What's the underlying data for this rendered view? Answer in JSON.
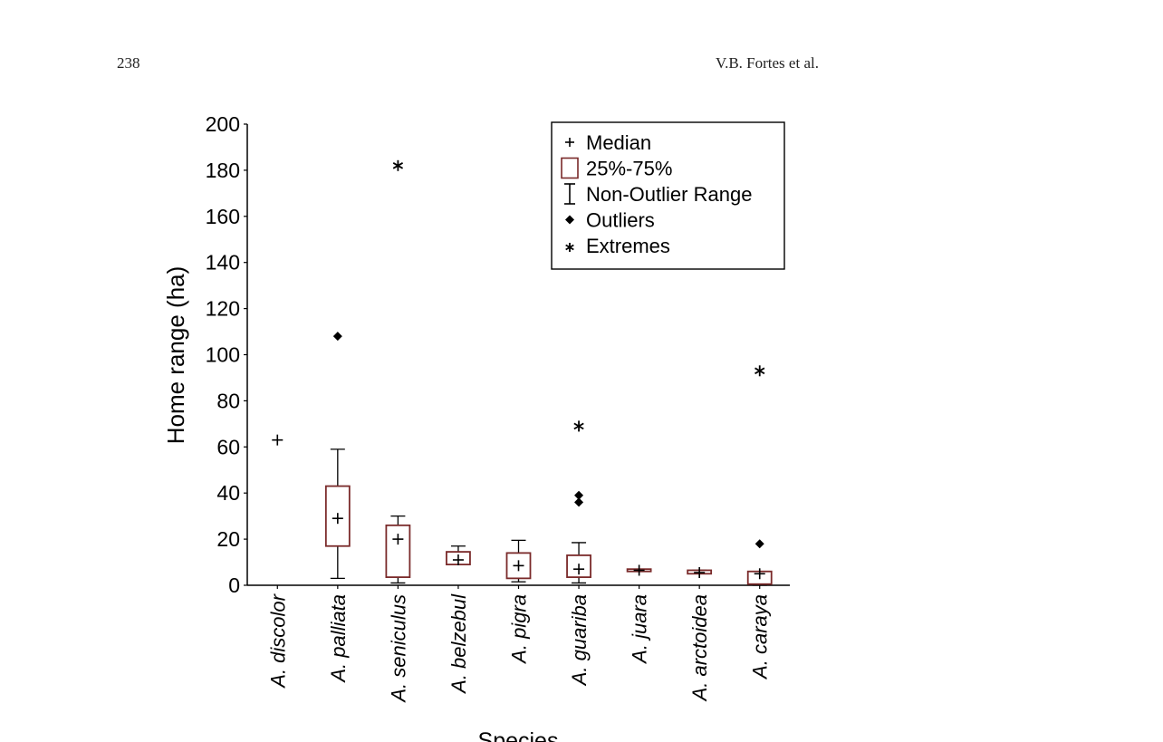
{
  "page": {
    "page_number": "238",
    "running_head": "V.B. Fortes et al."
  },
  "chart_data": {
    "type": "boxplot",
    "title": "",
    "xlabel": "Species",
    "ylabel": "Home range (ha)",
    "ylim": [
      0,
      200
    ],
    "yticks": [
      0,
      20,
      40,
      60,
      80,
      100,
      120,
      140,
      160,
      180,
      200
    ],
    "grid": false,
    "legend_position": "top-right",
    "box_color": "#7a2a2a",
    "legend": [
      {
        "symbol": "+",
        "label": "Median"
      },
      {
        "symbol": "box",
        "label": "25%-75%"
      },
      {
        "symbol": "whisker",
        "label": "Non-Outlier Range"
      },
      {
        "symbol": "diamond",
        "label": "Outliers"
      },
      {
        "symbol": "star",
        "label": "Extremes"
      }
    ],
    "categories": [
      "A. discolor",
      "A. palliata",
      "A. seniculus",
      "A. belzebul",
      "A. pigra",
      "A. guariba",
      "A. juara",
      "A. arctoidea",
      "A. caraya"
    ],
    "series": [
      {
        "median": 63,
        "q1": null,
        "q3": null,
        "whisker_low": null,
        "whisker_high": null,
        "outliers": [],
        "extremes": []
      },
      {
        "median": 29,
        "q1": 17,
        "q3": 43,
        "whisker_low": 3,
        "whisker_high": 59,
        "outliers": [
          108
        ],
        "extremes": []
      },
      {
        "median": 20,
        "q1": 3.5,
        "q3": 26,
        "whisker_low": 1,
        "whisker_high": 30,
        "outliers": [],
        "extremes": [
          182
        ]
      },
      {
        "median": 11,
        "q1": 9,
        "q3": 14.5,
        "whisker_low": 9,
        "whisker_high": 17,
        "outliers": [],
        "extremes": []
      },
      {
        "median": 8.5,
        "q1": 3,
        "q3": 14,
        "whisker_low": 1.5,
        "whisker_high": 19.5,
        "outliers": [],
        "extremes": []
      },
      {
        "median": 7,
        "q1": 3.5,
        "q3": 13,
        "whisker_low": 1,
        "whisker_high": 18.5,
        "outliers": [
          36,
          39
        ],
        "extremes": [
          69
        ]
      },
      {
        "median": 6.5,
        "q1": 6,
        "q3": 7,
        "whisker_low": 6,
        "whisker_high": 7,
        "outliers": [],
        "extremes": []
      },
      {
        "median": 5.5,
        "q1": 5,
        "q3": 6.5,
        "whisker_low": 5,
        "whisker_high": 6.5,
        "outliers": [],
        "extremes": []
      },
      {
        "median": 5,
        "q1": 0.5,
        "q3": 6,
        "whisker_low": 0,
        "whisker_high": 6,
        "outliers": [
          18
        ],
        "extremes": [
          93
        ]
      }
    ]
  }
}
